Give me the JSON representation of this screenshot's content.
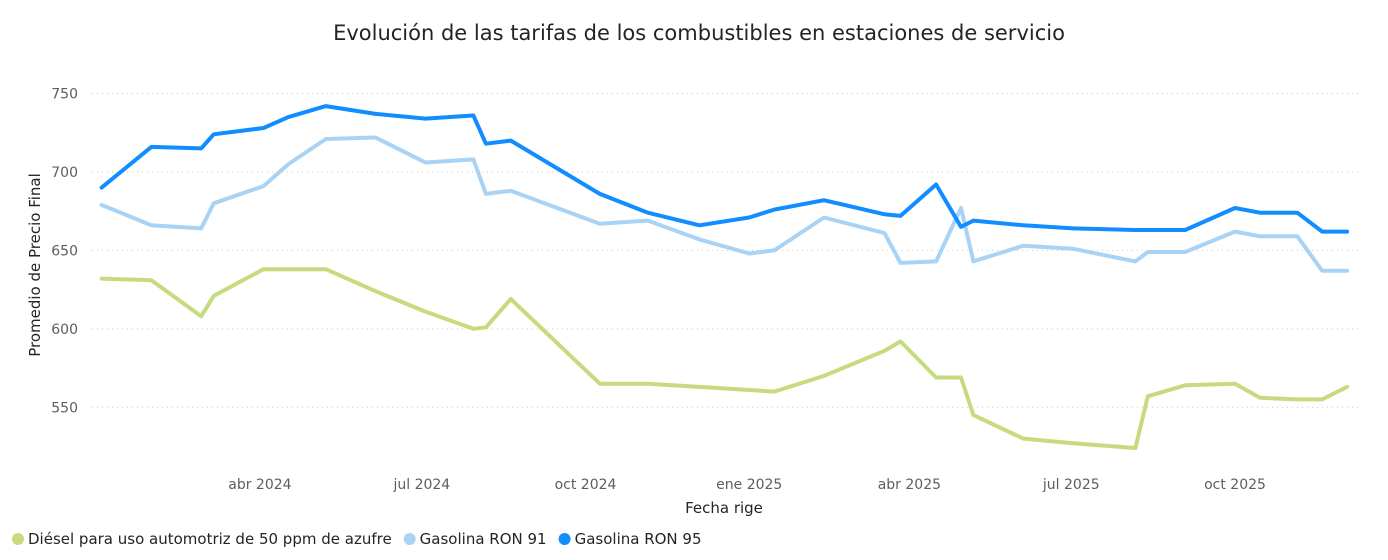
{
  "chart_data": {
    "type": "line",
    "title": "Evolución de las tarifas de los combustibles en estaciones de servicio",
    "xlabel": "Fecha rige",
    "ylabel": "Promedio de Precio Final",
    "ylim": [
      510,
      765
    ],
    "xlim": [
      "2024-01-01",
      "2025-12-08"
    ],
    "yticks": [
      550,
      600,
      650,
      700,
      750
    ],
    "xticks": [
      {
        "date": "2024-04-01",
        "label": "abr 2024"
      },
      {
        "date": "2024-07-01",
        "label": "jul 2024"
      },
      {
        "date": "2024-10-01",
        "label": "oct 2024"
      },
      {
        "date": "2025-01-01",
        "label": "ene 2025"
      },
      {
        "date": "2025-04-01",
        "label": "abr 2025"
      },
      {
        "date": "2025-07-01",
        "label": "jul 2025"
      },
      {
        "date": "2025-10-01",
        "label": "oct 2025"
      }
    ],
    "grid": true,
    "legend_position": "bottom-left",
    "x": [
      "2024-01-03",
      "2024-01-31",
      "2024-02-28",
      "2024-03-06",
      "2024-04-03",
      "2024-04-17",
      "2024-05-08",
      "2024-06-05",
      "2024-07-03",
      "2024-07-30",
      "2024-08-06",
      "2024-08-20",
      "2024-10-09",
      "2024-11-05",
      "2024-12-04",
      "2025-01-01",
      "2025-01-15",
      "2025-02-12",
      "2025-03-18",
      "2025-03-27",
      "2025-04-16",
      "2025-04-30",
      "2025-05-07",
      "2025-06-04",
      "2025-07-02",
      "2025-08-06",
      "2025-08-13",
      "2025-09-03",
      "2025-10-01",
      "2025-10-15",
      "2025-11-05",
      "2025-11-19",
      "2025-12-03"
    ],
    "series": [
      {
        "name": "Diésel para uso automotriz de 50 ppm de azufre",
        "color": "#C5DB7E",
        "values": [
          632,
          631,
          608,
          621,
          638,
          638,
          638,
          624,
          611,
          600,
          601,
          619,
          565,
          565,
          563,
          561,
          560,
          570,
          586,
          592,
          569,
          569,
          545,
          530,
          527,
          524,
          557,
          564,
          565,
          556,
          555,
          555,
          563
        ]
      },
      {
        "name": "Gasolina RON 91",
        "color": "#A9D3F5",
        "values": [
          679,
          666,
          664,
          680,
          691,
          705,
          721,
          722,
          706,
          708,
          686,
          688,
          667,
          669,
          657,
          648,
          650,
          671,
          661,
          642,
          643,
          677,
          643,
          653,
          651,
          643,
          649,
          649,
          662,
          659,
          659,
          637,
          637
        ]
      },
      {
        "name": "Gasolina RON 95",
        "color": "#118DFF",
        "values": [
          690,
          716,
          715,
          724,
          728,
          735,
          742,
          737,
          734,
          736,
          718,
          720,
          686,
          674,
          666,
          671,
          676,
          682,
          673,
          672,
          692,
          665,
          669,
          666,
          664,
          663,
          663,
          663,
          677,
          674,
          674,
          662,
          662
        ]
      }
    ]
  }
}
